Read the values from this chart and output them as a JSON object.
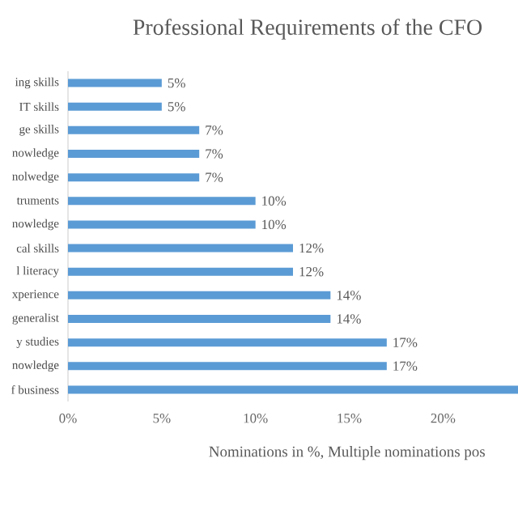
{
  "chart_data": {
    "type": "bar",
    "orientation": "horizontal",
    "title": "Professional Requirements of the CFO",
    "xlabel": "Nominations in %, Multiple nominations pos",
    "categories": [
      "ing skills",
      "IT skills",
      "ge skills",
      "nowledge",
      "nolwedge",
      "truments",
      "nowledge",
      "cal skills",
      "l literacy",
      "xperience",
      "generalist",
      "y studies",
      "nowledge",
      "f business"
    ],
    "values": [
      5,
      5,
      7,
      7,
      7,
      10,
      10,
      12,
      12,
      14,
      14,
      17,
      17,
      24
    ],
    "value_labels": [
      "5%",
      "5%",
      "7%",
      "7%",
      "7%",
      "10%",
      "10%",
      "12%",
      "12%",
      "14%",
      "14%",
      "17%",
      "17%",
      null
    ],
    "color": "#5b9bd5",
    "xlim": [
      0,
      24
    ],
    "xticks": [
      {
        "value": 0,
        "label": "0%"
      },
      {
        "value": 5,
        "label": "5%"
      },
      {
        "value": 10,
        "label": "10%"
      },
      {
        "value": 15,
        "label": "15%"
      },
      {
        "value": 20,
        "label": "20%"
      }
    ],
    "grid": false
  }
}
